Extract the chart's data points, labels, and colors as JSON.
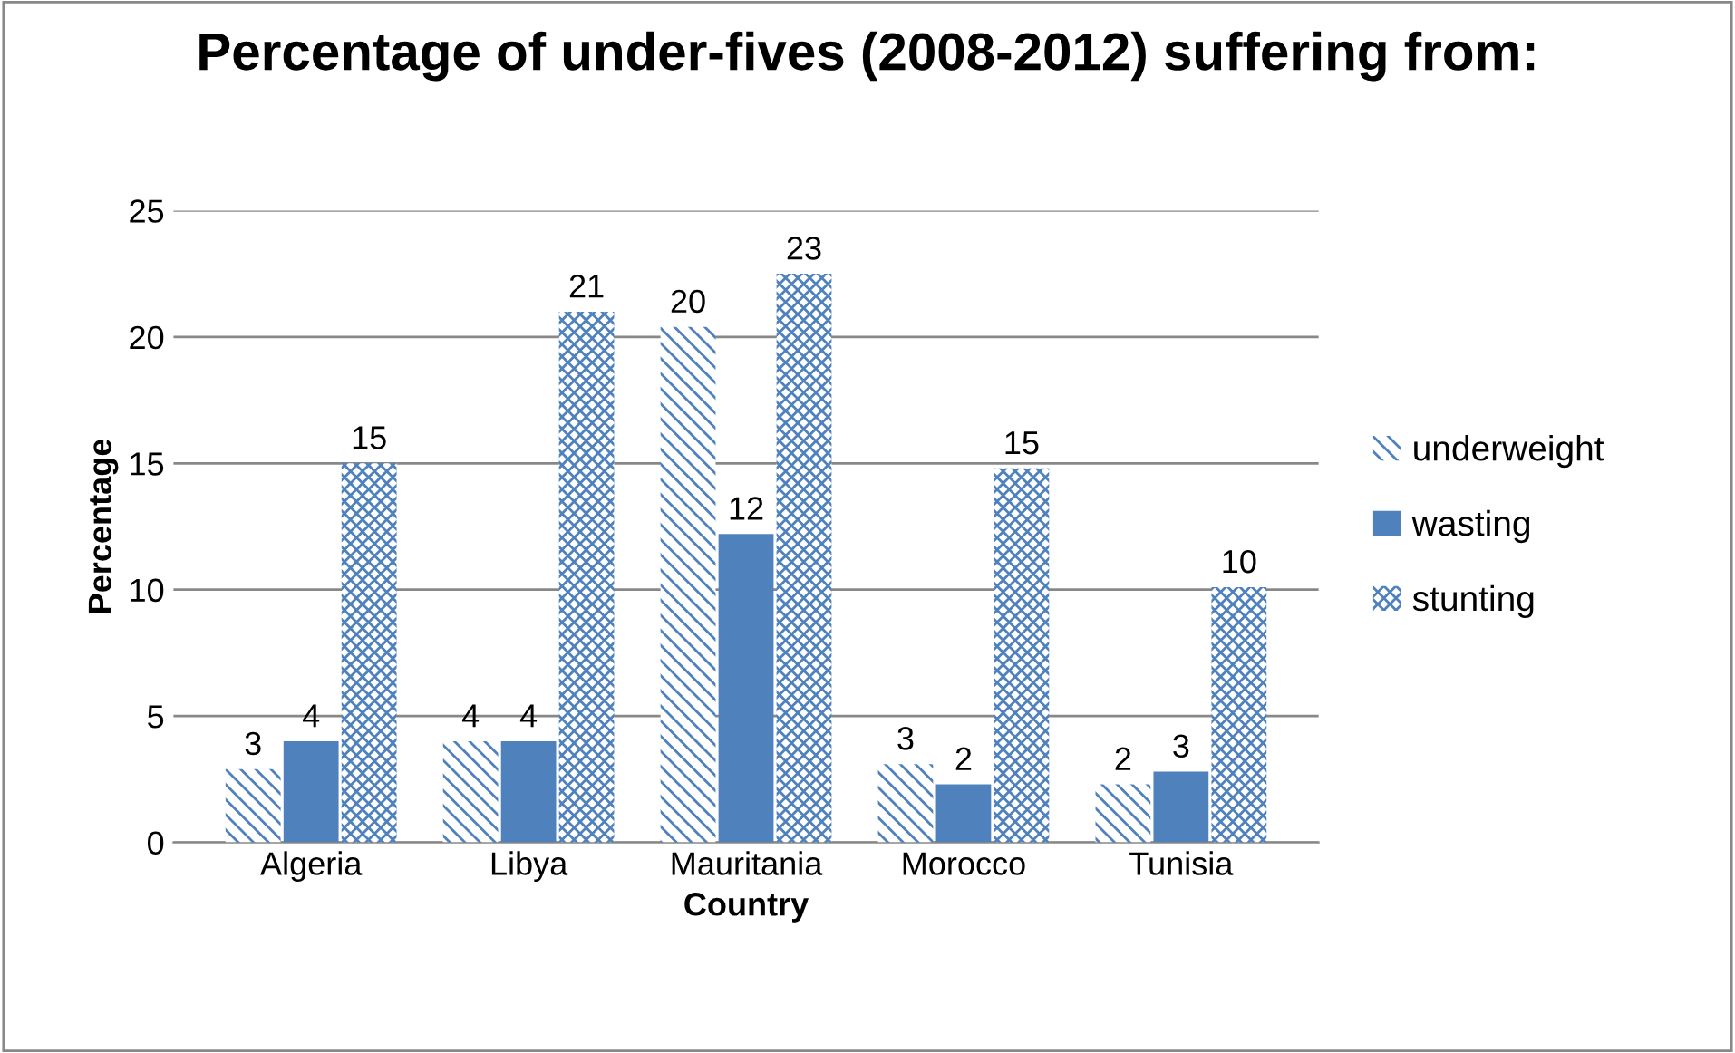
{
  "chart_data": {
    "type": "bar",
    "title": "Percentage of under-fives (2008-2012) suffering from:",
    "xlabel": "Country",
    "ylabel": "Percentage",
    "categories": [
      "Algeria",
      "Libya",
      "Mauritania",
      "Morocco",
      "Tunisia"
    ],
    "series": [
      {
        "name": "underweight",
        "color": "#4f81bd",
        "values": [
          2.9,
          4,
          20.4,
          3.1,
          2.3
        ],
        "value_labels": [
          "3",
          "4",
          "20",
          "3",
          "2"
        ]
      },
      {
        "name": "wasting",
        "color": "#4f81bd",
        "values": [
          4,
          4,
          12.2,
          2.3,
          2.8
        ],
        "value_labels": [
          "4",
          "4",
          "12",
          "2",
          "3"
        ]
      },
      {
        "name": "stunting",
        "color": "#4f81bd",
        "values": [
          15,
          21,
          22.5,
          14.8,
          10.1
        ],
        "value_labels": [
          "15",
          "21",
          "23",
          "15",
          "10"
        ]
      }
    ],
    "ylim": [
      0,
      25
    ],
    "yticks": [
      0,
      5,
      10,
      15,
      20,
      25
    ],
    "grid": "y",
    "legend": "right"
  }
}
